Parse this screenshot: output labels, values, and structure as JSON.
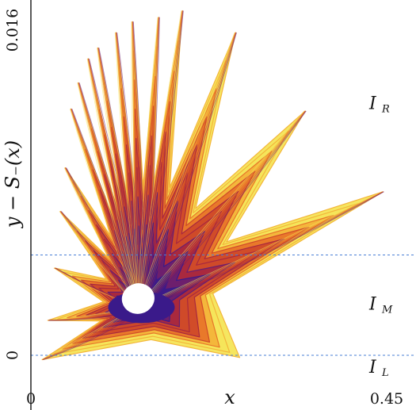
{
  "chart_data": {
    "type": "line",
    "title": "",
    "xlabel": "x",
    "ylabel": "y − S₋(x)",
    "xlim": [
      0,
      0.45
    ],
    "ylim": [
      0,
      0.016
    ],
    "x_ticks": [
      "0",
      "0.45"
    ],
    "y_ticks": [
      "0",
      "0.016"
    ],
    "grid": false,
    "reference_lines": [
      {
        "axis": "y",
        "value": 0,
        "style": "dashed",
        "color": "#4a7fd6"
      },
      {
        "axis": "y",
        "value": 0.0046,
        "style": "dashed",
        "color": "#4a7fd6"
      }
    ],
    "region_labels": [
      {
        "symbol": "I",
        "subscript": "R",
        "y": 0.0113
      },
      {
        "symbol": "I",
        "subscript": "M",
        "y": 0.0021
      },
      {
        "symbol": "I",
        "subscript": "L",
        "y": -0.0008
      }
    ],
    "tips": [
      {
        "x": 0.014,
        "y": -0.0002
      },
      {
        "x": 0.021,
        "y": 0.0016
      },
      {
        "x": 0.029,
        "y": 0.004
      },
      {
        "x": 0.036,
        "y": 0.0066
      },
      {
        "x": 0.042,
        "y": 0.0086
      },
      {
        "x": 0.049,
        "y": 0.0113
      },
      {
        "x": 0.058,
        "y": 0.0125
      },
      {
        "x": 0.07,
        "y": 0.0136
      },
      {
        "x": 0.082,
        "y": 0.0141
      },
      {
        "x": 0.104,
        "y": 0.0148
      },
      {
        "x": 0.124,
        "y": 0.0153
      },
      {
        "x": 0.156,
        "y": 0.0155
      },
      {
        "x": 0.185,
        "y": 0.0158
      },
      {
        "x": 0.25,
        "y": 0.0148
      },
      {
        "x": 0.335,
        "y": 0.0112
      },
      {
        "x": 0.43,
        "y": 0.0075
      }
    ],
    "bottom_tip": {
      "x": 0.255,
      "y": -0.0001
    },
    "core": {
      "x": 0.135,
      "y": 0.0022,
      "color": "#3a1a8a"
    },
    "hole": {
      "x": 0.131,
      "y": 0.0026,
      "rx": 0.02,
      "ry": 0.0007
    },
    "palette": [
      "#f5e55a",
      "#f4b53a",
      "#e8772a",
      "#cf4a2a",
      "#a8283f",
      "#6a1f6f",
      "#3a1a8a"
    ],
    "band_count": 9
  }
}
